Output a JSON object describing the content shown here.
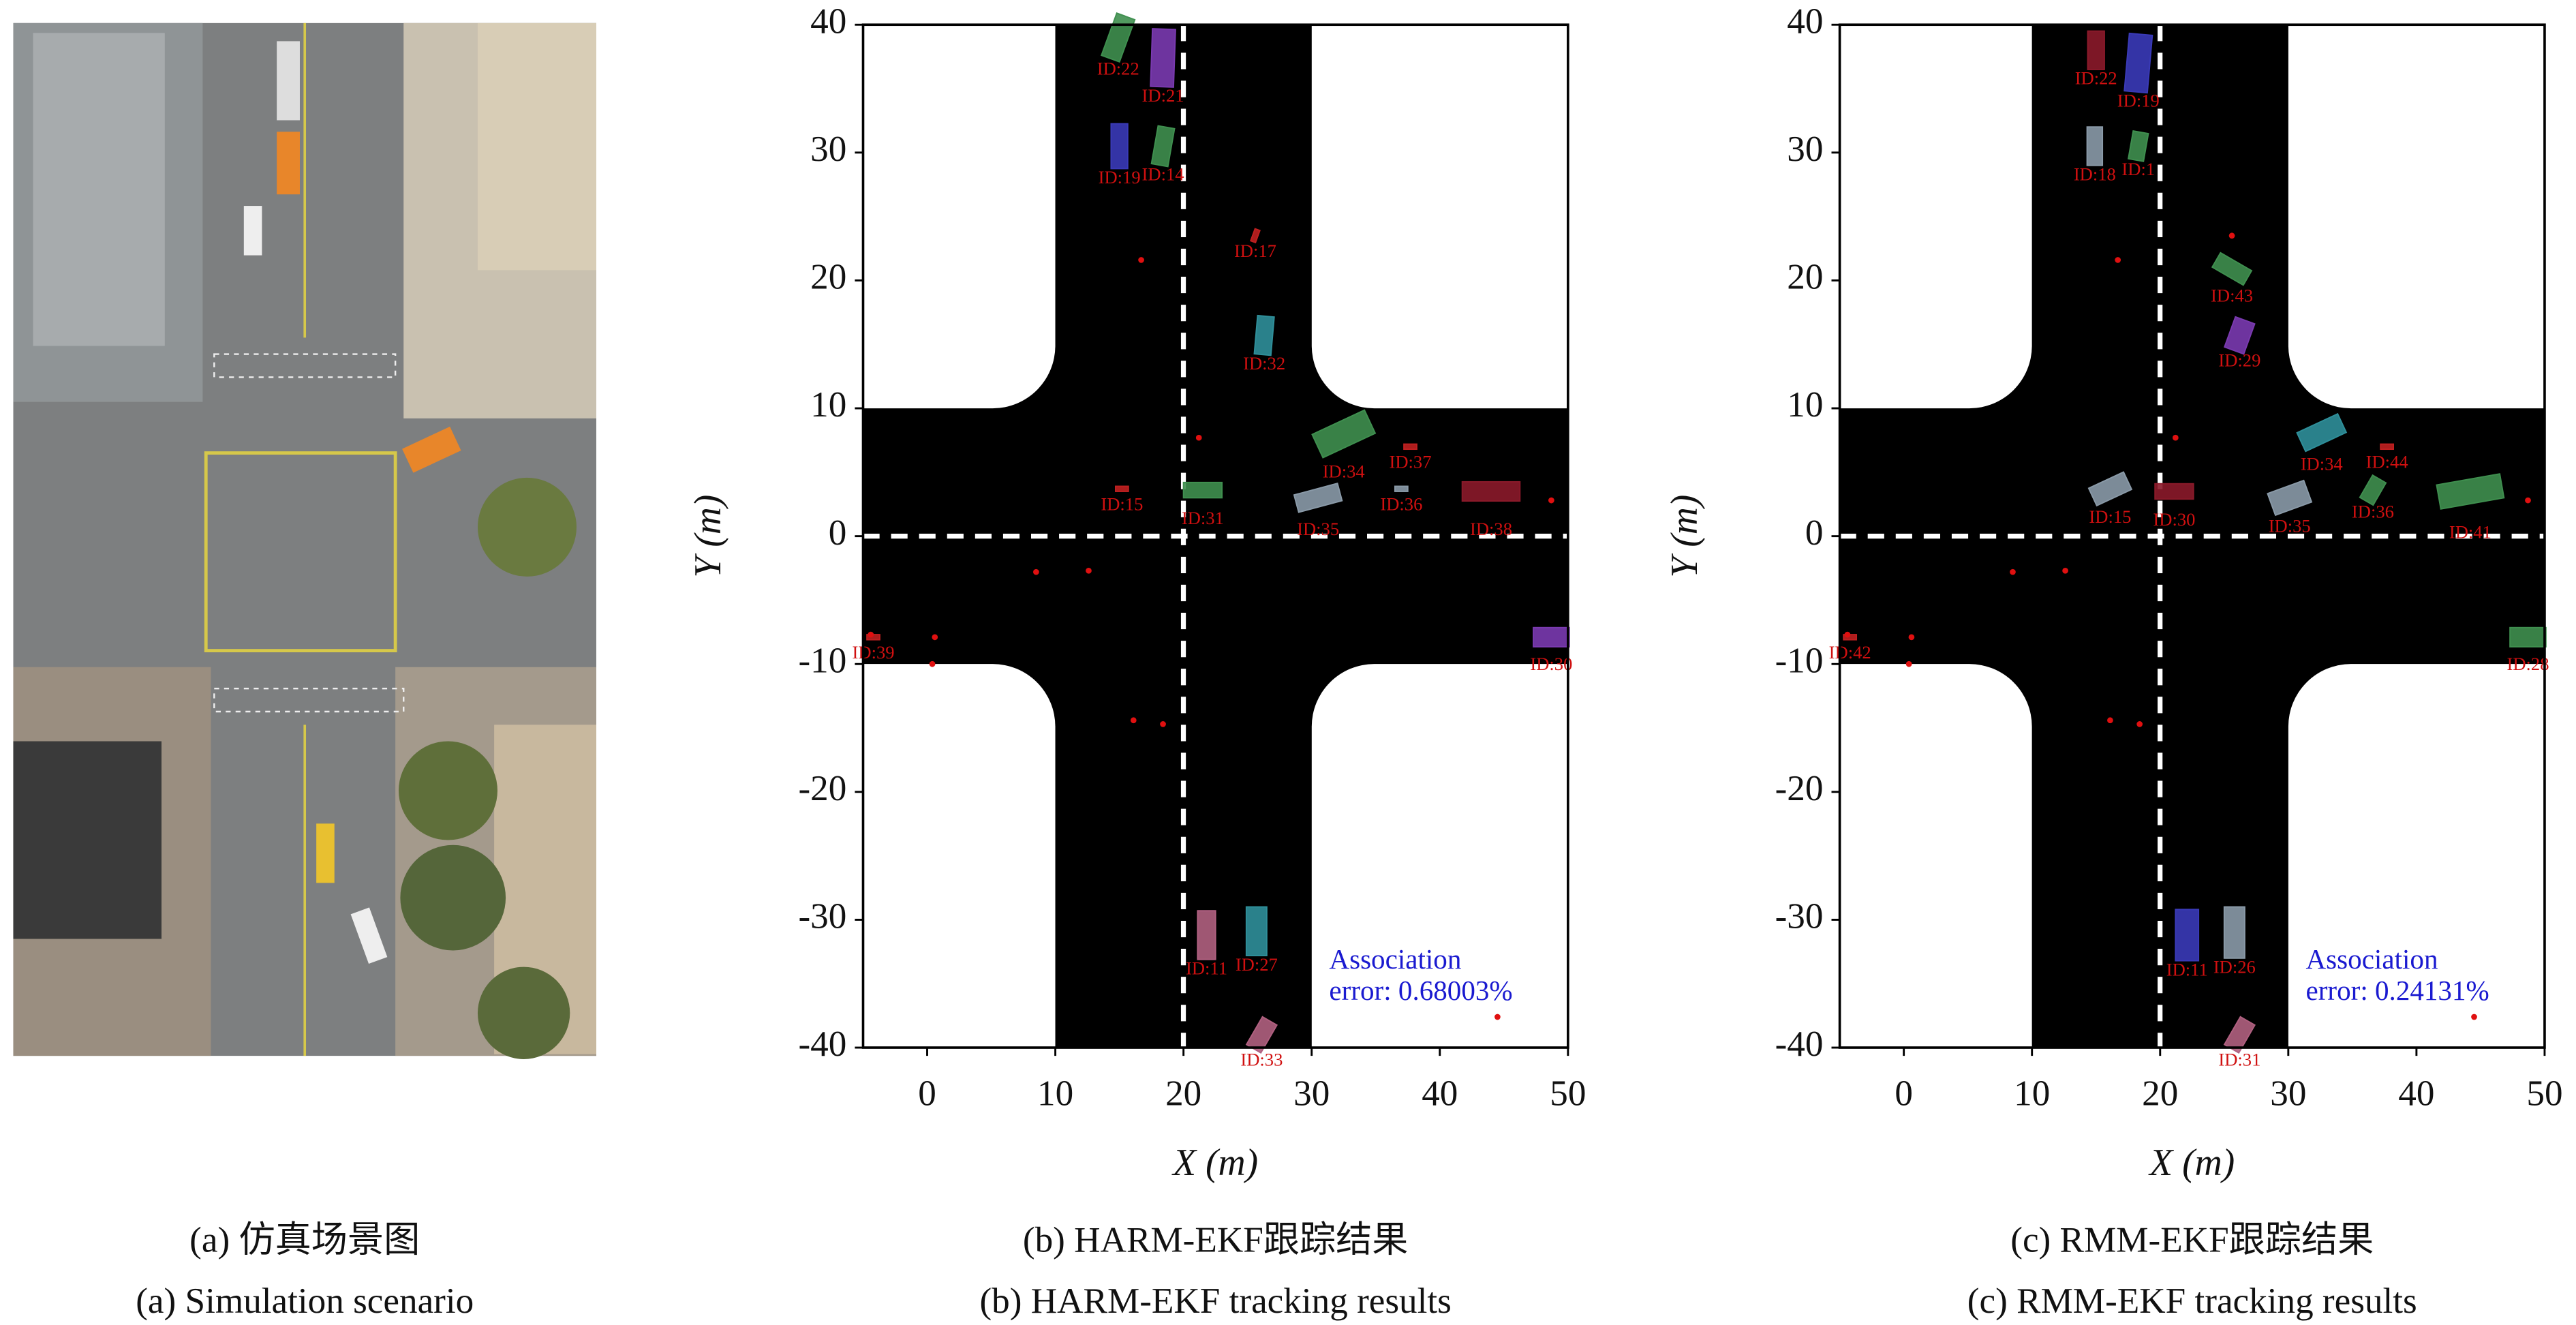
{
  "scene": {
    "captions": [
      "(a) 仿真场景图",
      "(a) Simulation scenario"
    ]
  },
  "chart_data": [
    {
      "type": "tracking",
      "captions": [
        "(b) HARM-EKF跟踪结果",
        "(b) HARM-EKF tracking results"
      ],
      "x_label": "X (m)",
      "y_label": "Y (m)",
      "xlim": [
        -5,
        50
      ],
      "ylim": [
        -40,
        40
      ],
      "xticks": [
        0,
        10,
        20,
        30,
        40,
        50
      ],
      "yticks": [
        -40,
        -30,
        -20,
        -10,
        0,
        10,
        20,
        30,
        40
      ],
      "annotation": [
        "Association",
        "error: 0.68003%"
      ],
      "tracks": [
        {
          "label": "ID:22",
          "x": 14.9,
          "y": 39,
          "length": 3.5,
          "width": 1.5,
          "angle": 70,
          "color": "#3f8f4f"
        },
        {
          "label": "ID:21",
          "x": 18.4,
          "y": 37.4,
          "length": 4.5,
          "width": 1.8,
          "angle": 88,
          "color": "#7a3ab0"
        },
        {
          "label": "ID:19",
          "x": 15,
          "y": 30.5,
          "length": 3.5,
          "width": 1.3,
          "angle": 90,
          "color": "#3a3ab8"
        },
        {
          "label": "ID:14",
          "x": 18.4,
          "y": 30.5,
          "length": 3,
          "width": 1.3,
          "angle": 80,
          "color": "#3f8f4f"
        },
        {
          "label": "ID:17",
          "x": 25.6,
          "y": 23.5,
          "length": 1,
          "width": 0.4,
          "angle": 70,
          "color": "#c02020"
        },
        {
          "label": "ID:32",
          "x": 26.3,
          "y": 15.7,
          "length": 3,
          "width": 1.3,
          "angle": 85,
          "color": "#2f8f9a"
        },
        {
          "label": "ID:34",
          "x": 32.5,
          "y": 8,
          "length": 4.5,
          "width": 2,
          "angle": 25,
          "color": "#3f8f4f"
        },
        {
          "label": "ID:37",
          "x": 37.7,
          "y": 7,
          "length": 1,
          "width": 0.4,
          "angle": 0,
          "color": "#c02020"
        },
        {
          "label": "ID:15",
          "x": 15.2,
          "y": 3.7,
          "length": 1,
          "width": 0.4,
          "angle": 0,
          "color": "#c02020"
        },
        {
          "label": "ID:31",
          "x": 21.5,
          "y": 3.6,
          "length": 3,
          "width": 1.2,
          "angle": 0,
          "color": "#3f8f4f"
        },
        {
          "label": "ID:35",
          "x": 30.5,
          "y": 3,
          "length": 3.5,
          "width": 1.4,
          "angle": 15,
          "color": "#8a9aa8"
        },
        {
          "label": "ID:36",
          "x": 37,
          "y": 3.7,
          "length": 1,
          "width": 0.4,
          "angle": 0,
          "color": "#8a9aa8"
        },
        {
          "label": "ID:38",
          "x": 44,
          "y": 3.5,
          "length": 4.5,
          "width": 1.5,
          "angle": 0,
          "color": "#8b1a2a"
        },
        {
          "label": "ID:39",
          "x": -4.2,
          "y": -7.9,
          "length": 1,
          "width": 0.4,
          "angle": 0,
          "color": "#c02020"
        },
        {
          "label": "ID:30",
          "x": 48.7,
          "y": -7.9,
          "length": 2.8,
          "width": 1.5,
          "angle": 0,
          "color": "#7a3ab0"
        },
        {
          "label": "ID:11",
          "x": 21.8,
          "y": -31.2,
          "length": 3.8,
          "width": 1.4,
          "angle": 90,
          "color": "#b06080"
        },
        {
          "label": "ID:27",
          "x": 25.7,
          "y": -30.9,
          "length": 3.8,
          "width": 1.6,
          "angle": 90,
          "color": "#2f8f9a"
        },
        {
          "label": "ID:33",
          "x": 26.1,
          "y": -39,
          "length": 2.5,
          "width": 1.3,
          "angle": 60,
          "color": "#b06080"
        }
      ],
      "detections": {
        "x": [
          16.7,
          21.2,
          48.7,
          8.5,
          12.6,
          -4.4,
          0.6,
          0.4,
          16.1,
          18.4,
          44.5
        ],
        "y": [
          21.6,
          7.7,
          2.8,
          -2.8,
          -2.7,
          -7.7,
          -7.9,
          -10,
          -14.4,
          -14.7,
          -37.6
        ],
        "color": "#e01010"
      }
    },
    {
      "type": "tracking",
      "captions": [
        "(c) RMM-EKF跟踪结果",
        "(c) RMM-EKF tracking results"
      ],
      "x_label": "X (m)",
      "y_label": "Y (m)",
      "xlim": [
        -5,
        50
      ],
      "ylim": [
        -40,
        40
      ],
      "xticks": [
        0,
        10,
        20,
        30,
        40,
        50
      ],
      "yticks": [
        -40,
        -30,
        -20,
        -10,
        0,
        10,
        20,
        30,
        40
      ],
      "annotation": [
        "Association",
        "error: 0.24131%"
      ],
      "tracks": [
        {
          "label": "ID:22",
          "x": 15,
          "y": 38,
          "length": 3,
          "width": 1.3,
          "angle": 90,
          "color": "#8b1a2a"
        },
        {
          "label": "ID:19",
          "x": 18.3,
          "y": 37,
          "length": 4.5,
          "width": 1.8,
          "angle": 85,
          "color": "#3a3ab8"
        },
        {
          "label": "ID:18",
          "x": 14.9,
          "y": 30.5,
          "length": 3,
          "width": 1.2,
          "angle": 90,
          "color": "#8a9aa8"
        },
        {
          "label": "ID:1",
          "x": 18.3,
          "y": 30.5,
          "length": 2.2,
          "width": 1.2,
          "angle": 80,
          "color": "#3f8f4f"
        },
        {
          "label": "ID:43",
          "x": 25.6,
          "y": 20.9,
          "length": 2.8,
          "width": 1.3,
          "angle": -30,
          "color": "#3f8f4f"
        },
        {
          "label": "ID:29",
          "x": 26.2,
          "y": 15.7,
          "length": 2.5,
          "width": 1.6,
          "angle": 70,
          "color": "#7a3ab0"
        },
        {
          "label": "ID:34",
          "x": 32.6,
          "y": 8.1,
          "length": 3.5,
          "width": 1.6,
          "angle": 25,
          "color": "#2f8f9a"
        },
        {
          "label": "ID:44",
          "x": 37.7,
          "y": 7,
          "length": 1,
          "width": 0.4,
          "angle": 0,
          "color": "#c02020"
        },
        {
          "label": "ID:15",
          "x": 16.1,
          "y": 3.7,
          "length": 3,
          "width": 1.5,
          "angle": 25,
          "color": "#8a9aa8"
        },
        {
          "label": "ID:30",
          "x": 21.1,
          "y": 3.5,
          "length": 3,
          "width": 1.2,
          "angle": 0,
          "color": "#8b1a2a"
        },
        {
          "label": "ID:35",
          "x": 30.1,
          "y": 3,
          "length": 3,
          "width": 1.8,
          "angle": 20,
          "color": "#8a9aa8"
        },
        {
          "label": "ID:36",
          "x": 36.6,
          "y": 3.6,
          "length": 2,
          "width": 1.2,
          "angle": 60,
          "color": "#3f8f4f"
        },
        {
          "label": "ID:41",
          "x": 44.2,
          "y": 3.5,
          "length": 5,
          "width": 1.9,
          "angle": 10,
          "color": "#3f8f4f"
        },
        {
          "label": "ID:42",
          "x": -4.2,
          "y": -7.9,
          "length": 1,
          "width": 0.4,
          "angle": 0,
          "color": "#c02020"
        },
        {
          "label": "ID:28",
          "x": 48.7,
          "y": -7.9,
          "length": 2.8,
          "width": 1.5,
          "angle": 0,
          "color": "#3f8f4f"
        },
        {
          "label": "ID:11",
          "x": 22.1,
          "y": -31.2,
          "length": 4,
          "width": 1.8,
          "angle": 90,
          "color": "#3a3ab8"
        },
        {
          "label": "ID:26",
          "x": 25.8,
          "y": -31,
          "length": 4,
          "width": 1.6,
          "angle": 90,
          "color": "#8a9aa8"
        },
        {
          "label": "ID:31",
          "x": 26.2,
          "y": -39,
          "length": 2.5,
          "width": 1.3,
          "angle": 60,
          "color": "#b06080"
        }
      ],
      "detections": {
        "x": [
          16.7,
          21.2,
          48.7,
          8.5,
          12.6,
          -4.4,
          0.6,
          0.4,
          16.1,
          18.4,
          44.5,
          25.6
        ],
        "y": [
          21.6,
          7.7,
          2.8,
          -2.8,
          -2.7,
          -7.7,
          -7.9,
          -10,
          -14.4,
          -14.7,
          -37.6,
          23.5
        ],
        "color": "#e01010"
      }
    }
  ]
}
